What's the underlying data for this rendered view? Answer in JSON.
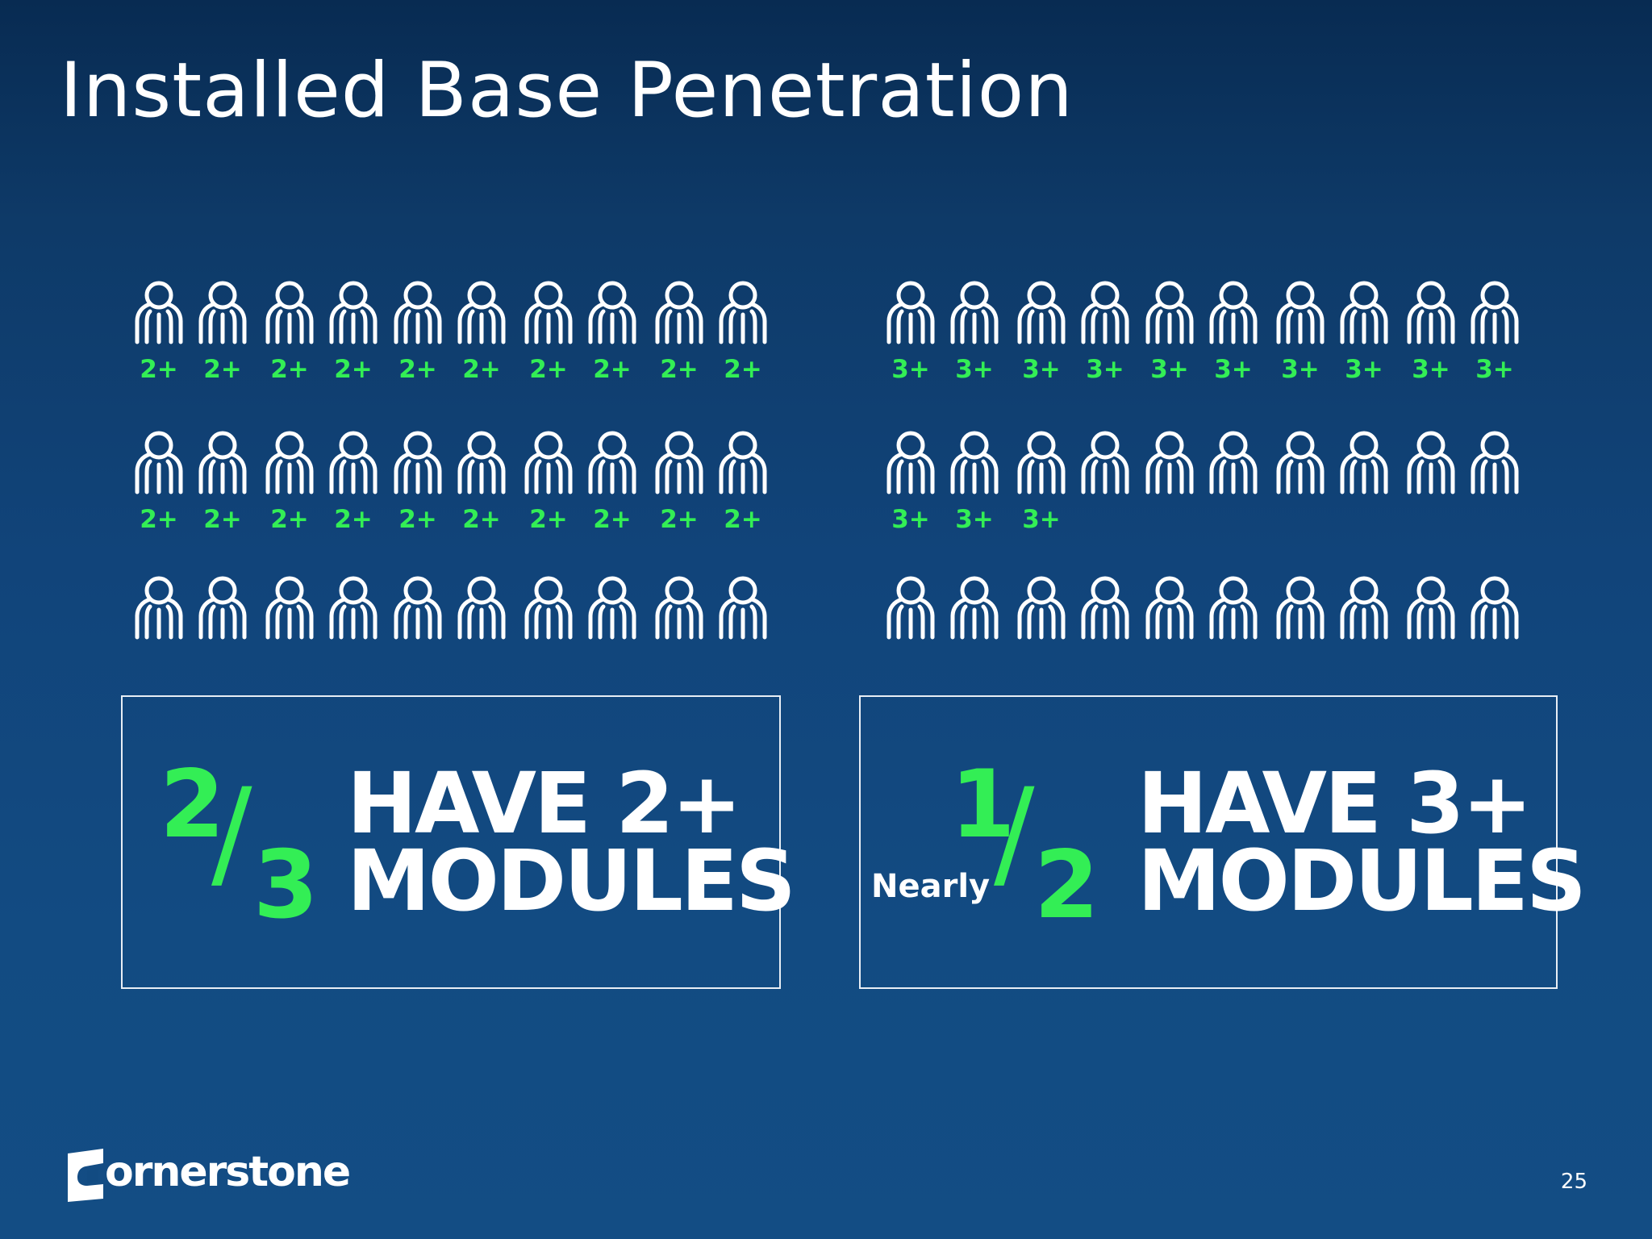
{
  "slide": {
    "title": "Installed Base Penetration",
    "page_number": "25"
  },
  "left_group": {
    "label_text": "2+",
    "rows": [
      {
        "labels": [
          "2+",
          "2+",
          "2+",
          "2+",
          "2+",
          "2+",
          "2+",
          "2+",
          "2+",
          "2+"
        ]
      },
      {
        "labels": [
          "2+",
          "2+",
          "2+",
          "2+",
          "2+",
          "2+",
          "2+",
          "2+",
          "2+",
          "2+"
        ]
      },
      {
        "labels": []
      }
    ],
    "per_row": 10,
    "fraction": {
      "numerator": "2",
      "denominator": "3"
    },
    "headline_line1": "HAVE 2+",
    "headline_line2": "MODULES"
  },
  "right_group": {
    "label_text": "3+",
    "rows": [
      {
        "labels": [
          "3+",
          "3+",
          "3+",
          "3+",
          "3+",
          "3+",
          "3+",
          "3+",
          "3+",
          "3+"
        ]
      },
      {
        "labels": [
          "3+",
          "3+",
          "3+"
        ]
      },
      {
        "labels": []
      }
    ],
    "per_row": 10,
    "qualifier": "Nearly",
    "fraction": {
      "numerator": "1",
      "denominator": "2"
    },
    "headline_line1": "HAVE 3+",
    "headline_line2": "MODULES"
  },
  "colors": {
    "accent_green": "#33ee55",
    "background": "#124b82",
    "text": "#ffffff"
  },
  "logo": {
    "icon": "cornerstone-logo-mark",
    "text": "ornerstone"
  }
}
